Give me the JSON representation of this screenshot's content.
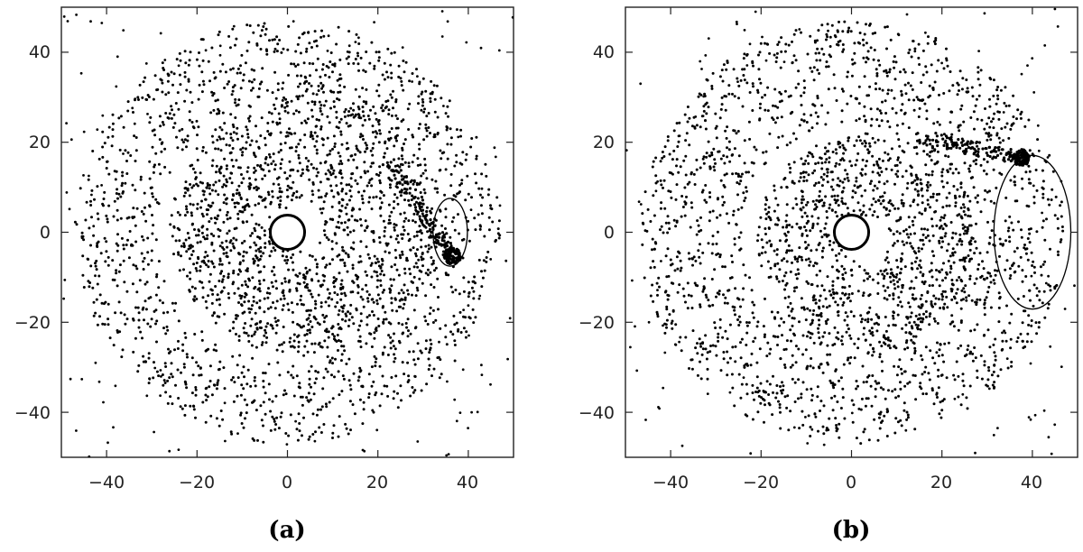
{
  "chart_data": [
    {
      "type": "scatter",
      "panel_label": "(a)",
      "xlim": [
        -50,
        50
      ],
      "ylim": [
        -50,
        50
      ],
      "xticks": [
        -40,
        -20,
        0,
        20,
        40
      ],
      "yticks": [
        -40,
        -20,
        0,
        20,
        40
      ],
      "xticklabels": [
        "−40",
        "−20",
        "0",
        "20",
        "40"
      ],
      "yticklabels": [
        "−40",
        "−20",
        "0",
        "20",
        "40"
      ],
      "central_object": {
        "x": 0,
        "y": 0,
        "radius": 3.8
      },
      "orbiter": {
        "x": 36.5,
        "y": -5.2
      },
      "roche_lobe": {
        "cx": 36,
        "cy": 0,
        "rx": 3.8,
        "ry": 7.5
      },
      "disk": {
        "inner_radius": 5,
        "outer_radius": 47,
        "dense_radius": 29,
        "spiral_sign": 1
      },
      "grid": false,
      "point_color": "#000000"
    },
    {
      "type": "scatter",
      "panel_label": "(b)",
      "xlim": [
        -50,
        50
      ],
      "ylim": [
        -50,
        50
      ],
      "xticks": [
        -40,
        -20,
        0,
        20,
        40
      ],
      "yticks": [
        -40,
        -20,
        0,
        20,
        40
      ],
      "xticklabels": [
        "−40",
        "−20",
        "0",
        "20",
        "40"
      ],
      "yticklabels": [
        "−40",
        "−20",
        "0",
        "20",
        "40"
      ],
      "central_object": {
        "x": 0,
        "y": 0,
        "radius": 3.8
      },
      "orbiter": {
        "x": 37.5,
        "y": 16.5
      },
      "roche_lobe": {
        "cx": 40,
        "cy": 0,
        "rx": 8.5,
        "ry": 17
      },
      "disk": {
        "inner_radius": 5,
        "outer_radius": 47,
        "dense_radius": 24,
        "spiral_sign": -1
      },
      "grid": false,
      "point_color": "#000000"
    }
  ]
}
